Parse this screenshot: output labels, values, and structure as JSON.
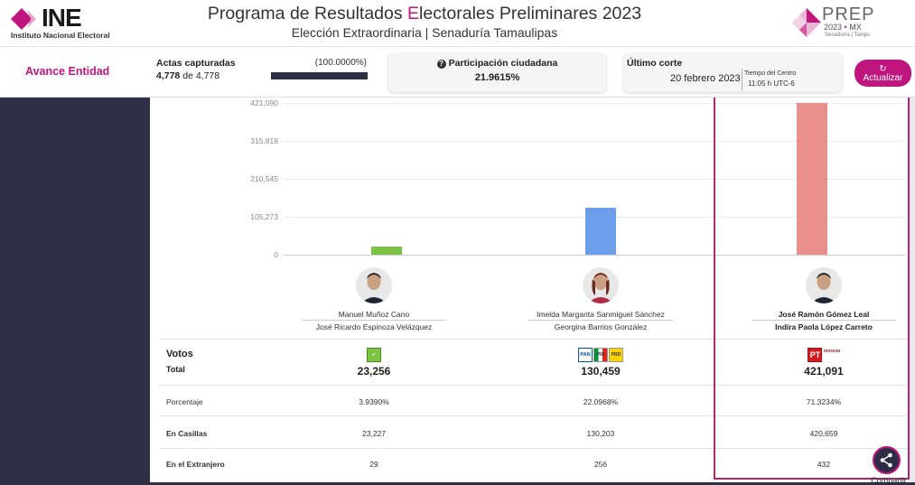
{
  "header": {
    "ine_logo": "INE",
    "ine_subtitle": "Instituto Nacional Electoral",
    "title_part1": "Programa de Resultados ",
    "title_highlight": "E",
    "title_part2": "lectorales Preliminares 2023",
    "subtitle": "Elección Extraordinaria | Senaduría Tamaulipas",
    "prep_word": "PREP",
    "prep_year": "2023",
    "prep_dot": "•",
    "prep_country": "MX",
    "prep_location": "Senaduría | Tamps"
  },
  "summary": {
    "avance_label": "Avance Entidad",
    "actas_label": "Actas capturadas",
    "actas_pct": "(100.0000%)",
    "actas_captured": "4,778",
    "actas_de": "de",
    "actas_total": "4,778",
    "actas_progress": 1.0,
    "participacion_label": "Participación ciudadana",
    "participacion_icon": "?",
    "participacion_value": "21.9615%",
    "ultimo_corte_label": "Último corte",
    "ultimo_corte_date": "20 febrero 2023",
    "tz_label": "Tiempo del Centro",
    "tz_time": "11:05 h UTC-6",
    "refresh_icon": "refresh-icon",
    "refresh_label": "Actualizar"
  },
  "chart_data": {
    "type": "bar",
    "categories": [
      "Manuel Muñoz Cano",
      "Imelda Margarita Sanmiguel Sánchez",
      "José Ramón Gómez Leal"
    ],
    "values": [
      23256,
      130459,
      421091
    ],
    "colors": [
      "#7dc242",
      "#6d9eeb",
      "#e98f8c"
    ],
    "y_ticks": [
      "421,090",
      "315,818",
      "210,545",
      "105,273",
      "0"
    ],
    "ylim": [
      0,
      421090
    ]
  },
  "candidates": [
    {
      "name1": "Manuel Muñoz Cano",
      "name2": "José Ricardo Espinoza Velázquez",
      "avatar": "candidate-avatar"
    },
    {
      "name1": "Imelda Margarita Sanmiguel Sánchez",
      "name2": "Georgina Barrios González",
      "avatar": "candidate-avatar"
    },
    {
      "name1": "José Ramón Gómez Leal",
      "name2": "Indira Paola López Carreto",
      "avatar": "candidate-avatar"
    }
  ],
  "parties": [
    [
      "VERDE"
    ],
    [
      "PAN",
      "PRI",
      "PRD"
    ],
    [
      "PT",
      "morena"
    ]
  ],
  "table": {
    "votos_title": "Votos",
    "votos_sub": "Total",
    "rows": [
      {
        "label": "Porcentaje",
        "values": [
          "3.9390%",
          "22.0968%",
          "71.3234%"
        ]
      },
      {
        "label": "En Casillas",
        "values": [
          "23,227",
          "130,203",
          "420,659"
        ]
      },
      {
        "label": "En el Extranjero",
        "values": [
          "29",
          "256",
          "432"
        ]
      }
    ],
    "totals": [
      "23,256",
      "130,459",
      "421,091"
    ]
  },
  "share": {
    "label": "Compartir",
    "icon": "share-icon"
  },
  "colors": {
    "accent": "#c0157f",
    "dark": "#2f2f45"
  }
}
